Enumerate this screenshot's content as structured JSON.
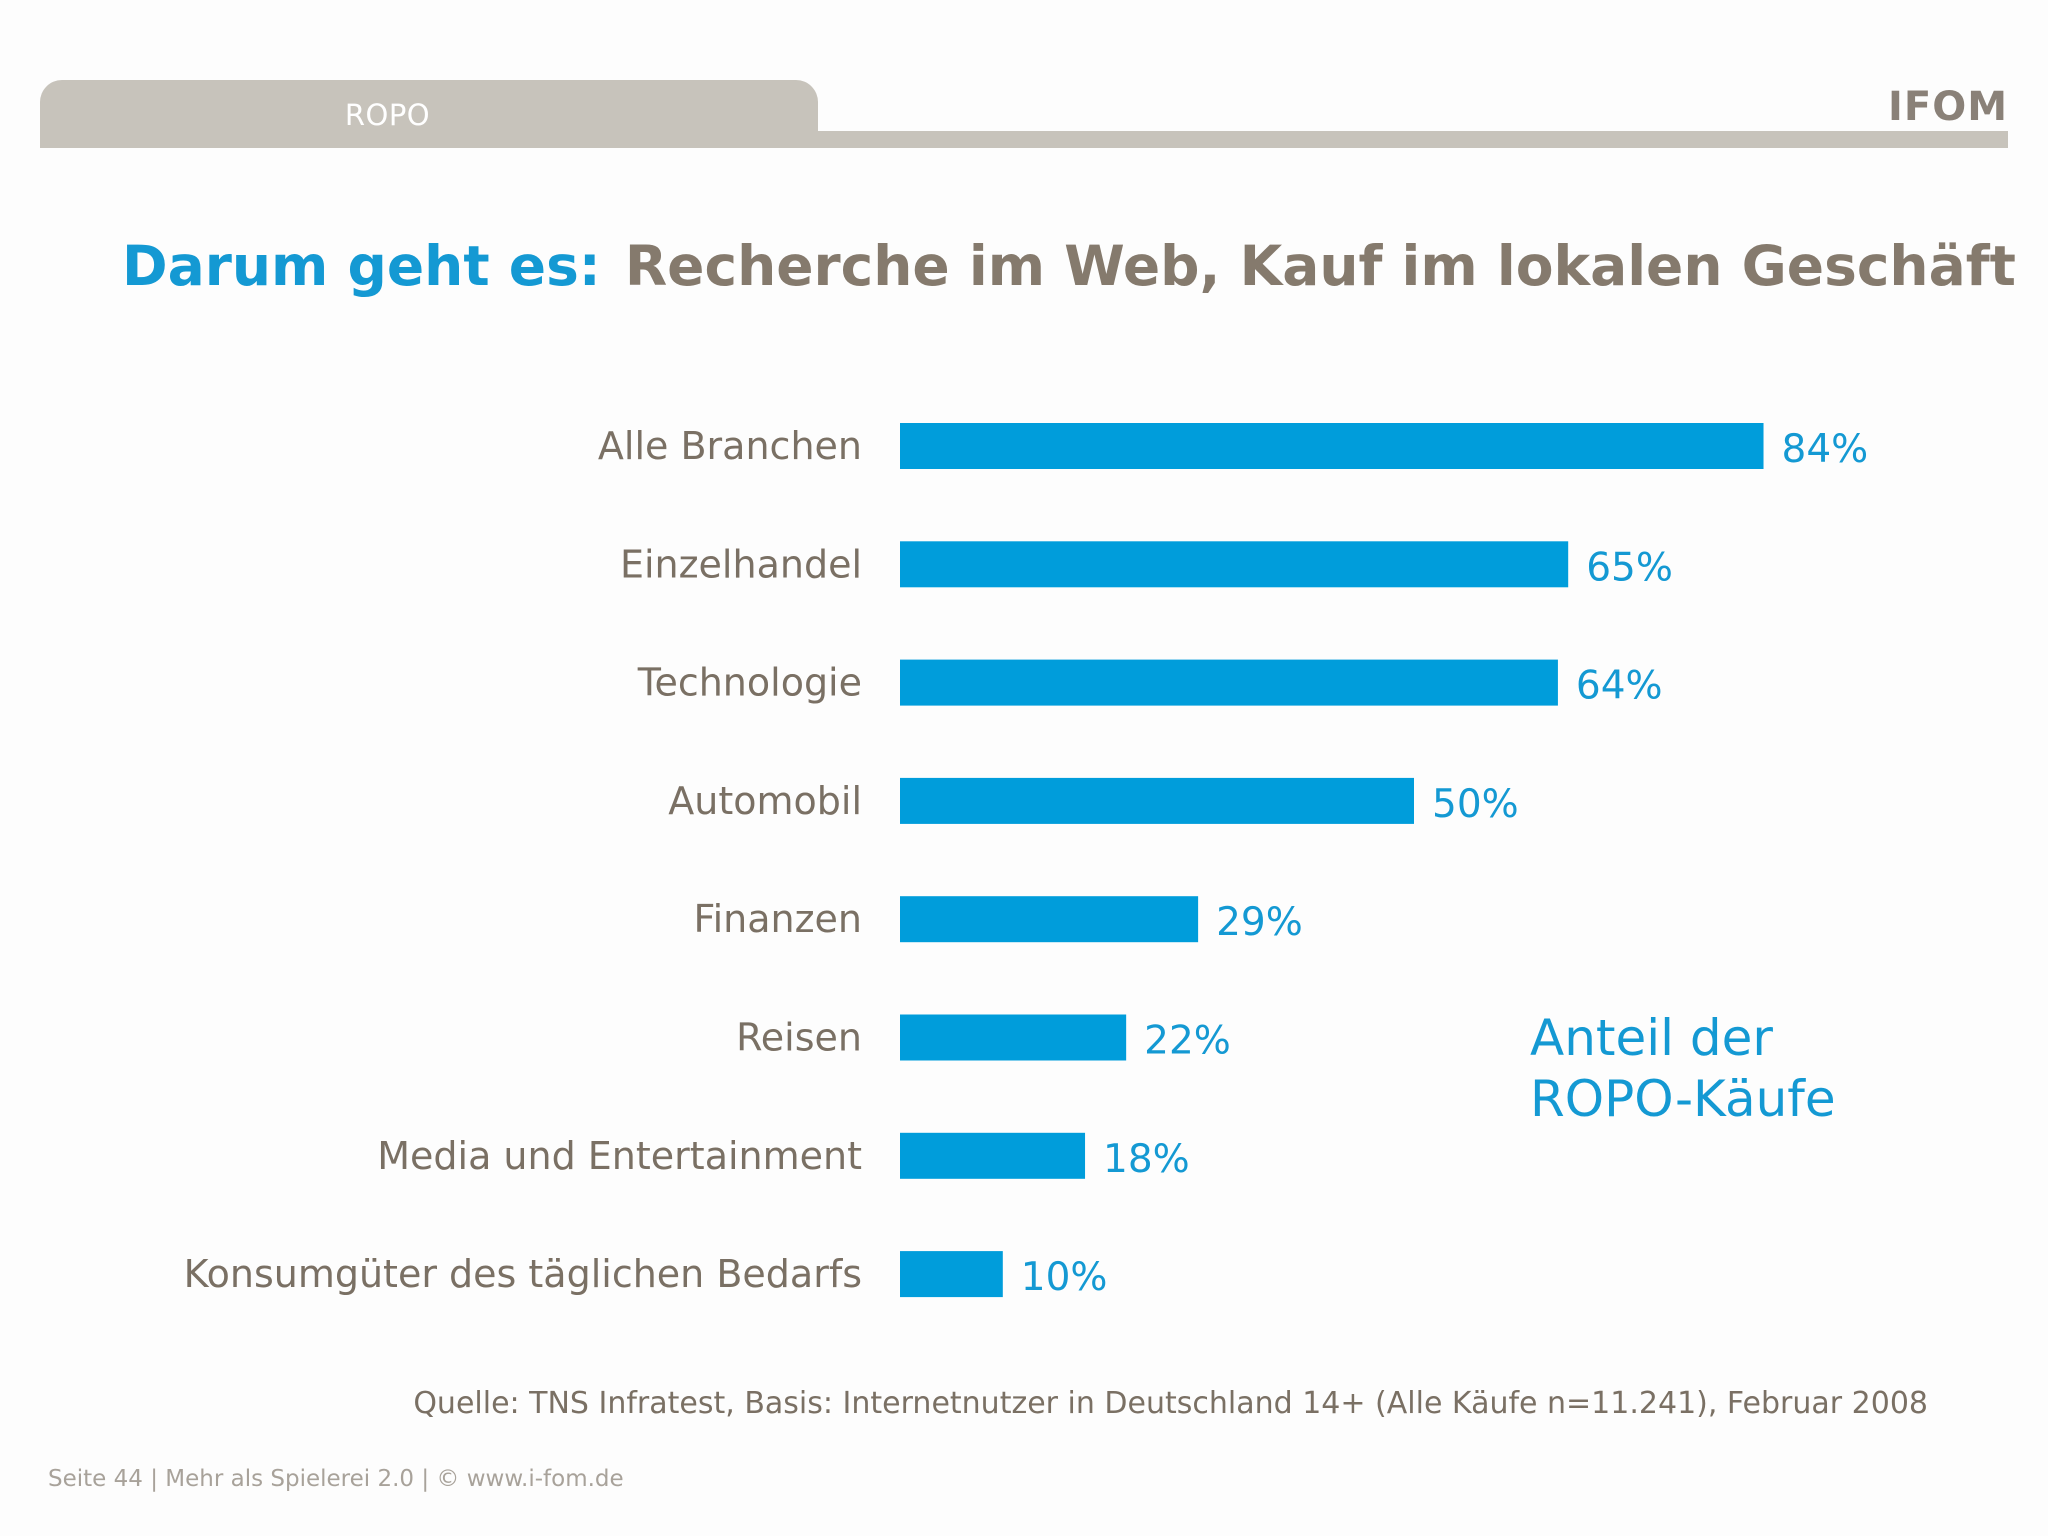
{
  "header": {
    "tab_label": "ROPO",
    "logo_text": "IFOM"
  },
  "title": {
    "prefix": "Darum geht es:",
    "main": "Recherche im Web, Kauf im lokalen Geschäft"
  },
  "chart_data": {
    "type": "bar",
    "orientation": "horizontal",
    "categories": [
      "Alle Branchen",
      "Einzelhandel",
      "Technologie",
      "Automobil",
      "Finanzen",
      "Reisen",
      "Media und Entertainment",
      "Konsumgüter des täglichen Bedarfs"
    ],
    "values": [
      84,
      65,
      64,
      50,
      29,
      22,
      18,
      10
    ],
    "value_labels": [
      "84%",
      "65%",
      "64%",
      "50%",
      "29%",
      "22%",
      "18%",
      "10%"
    ],
    "unit": "%",
    "xlim": [
      0,
      100
    ],
    "grid": false,
    "color": "#009ddb"
  },
  "annotation": {
    "line1": "Anteil der",
    "line2": "ROPO-Käufe"
  },
  "source": "Quelle: TNS Infratest, Basis: Internetnutzer in Deutschland 14+ (Alle Käufe n=11.241), Februar 2008",
  "footer": "Seite 44  |  Mehr als Spielerei 2.0  |  © www.i-fom.de"
}
